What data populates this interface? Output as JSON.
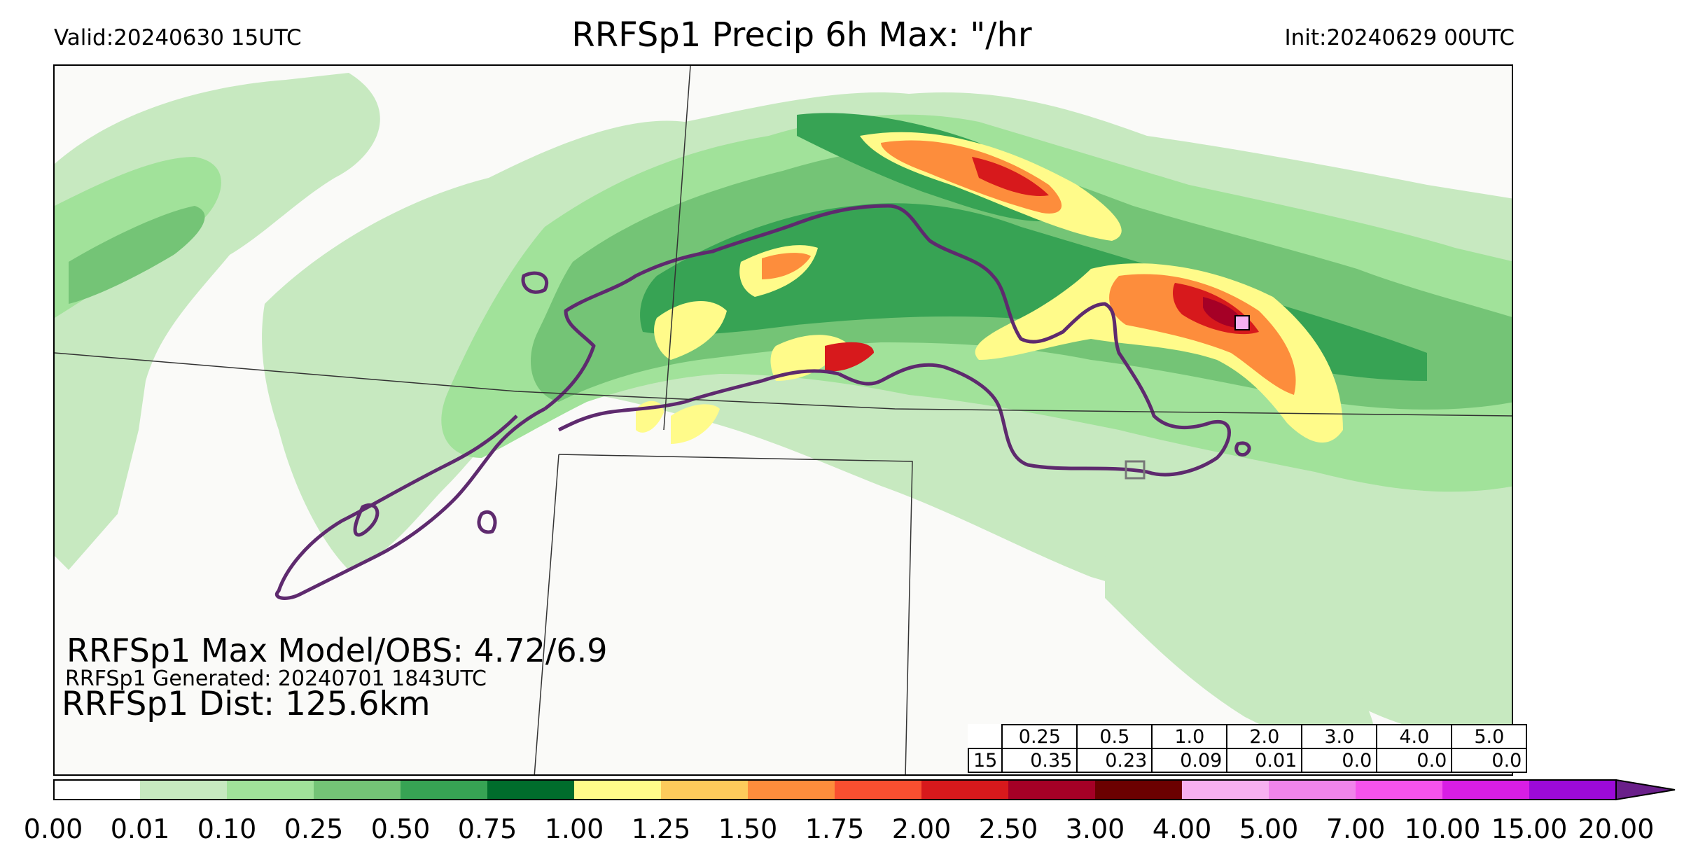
{
  "header": {
    "valid": "Valid:20240630 15UTC",
    "title": "RRFSp1 Precip 6h Max: \"/hr",
    "init": "Init:20240629 00UTC"
  },
  "annotations": {
    "max_model_obs": "RRFSp1 Max Model/OBS: 4.72/6.9",
    "generated": "RRFSp1 Generated: 20240701 1843UTC",
    "dist": "RRFSp1 Dist: 125.6km"
  },
  "threshold_table": {
    "thresholds": [
      "0.25",
      "0.5",
      "1.0",
      "2.0",
      "3.0",
      "4.0",
      "5.0"
    ],
    "rows": [
      {
        "hour": "15",
        "values": [
          "0.35",
          "0.23",
          "0.09",
          "0.01",
          "0.0",
          "0.0",
          "0.0"
        ]
      }
    ]
  },
  "colorbar": {
    "ticks": [
      "0.00",
      "0.01",
      "0.10",
      "0.25",
      "0.50",
      "0.75",
      "1.00",
      "1.25",
      "1.50",
      "1.75",
      "2.00",
      "2.50",
      "3.00",
      "4.00",
      "5.00",
      "7.00",
      "10.00",
      "15.00",
      "20.00"
    ],
    "colors": [
      "#ffffff",
      "#c7e9c0",
      "#a1e29a",
      "#74c476",
      "#37a354",
      "#006d2c",
      "#fffb8a",
      "#fdcb5b",
      "#fd8d3c",
      "#f94f30",
      "#d7191c",
      "#a50026",
      "#6b0000",
      "#f7b0f0",
      "#f084ea",
      "#f553ec",
      "#d81ee4",
      "#9c0ad8"
    ],
    "extend_color": "#6a1f8a"
  },
  "map_colors": {
    "background": "#fafaf8",
    "contour_outline": "#5e2a6e",
    "state_border": "#333333"
  }
}
